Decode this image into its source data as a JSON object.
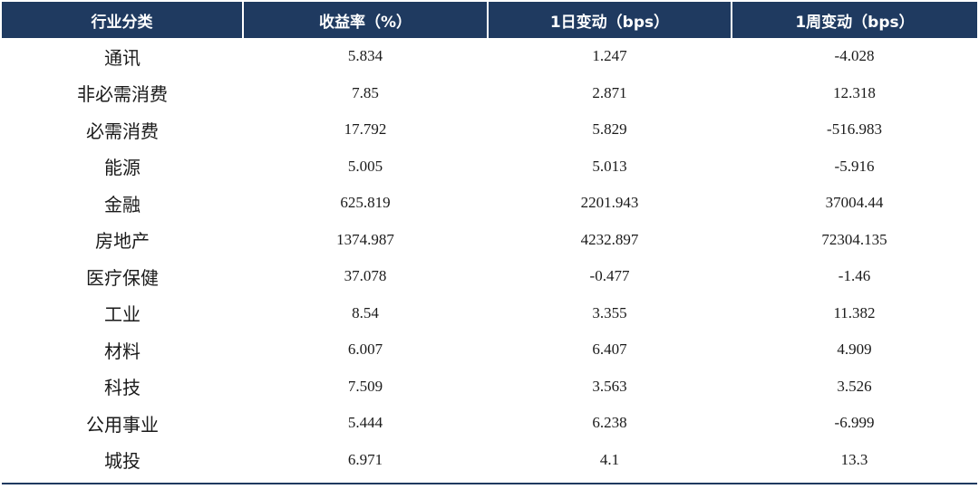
{
  "chart_data": {
    "type": "table",
    "columns": [
      "行业分类",
      "收益率（%）",
      "1日变动（bps）",
      "1周变动（bps）"
    ],
    "rows": [
      [
        "通讯",
        "5.834",
        "1.247",
        "-4.028"
      ],
      [
        "非必需消费",
        "7.85",
        "2.871",
        "12.318"
      ],
      [
        "必需消费",
        "17.792",
        "5.829",
        "-516.983"
      ],
      [
        "能源",
        "5.005",
        "5.013",
        "-5.916"
      ],
      [
        "金融",
        "625.819",
        "2201.943",
        "37004.44"
      ],
      [
        "房地产",
        "1374.987",
        "4232.897",
        "72304.135"
      ],
      [
        "医疗保健",
        "37.078",
        "-0.477",
        "-1.46"
      ],
      [
        "工业",
        "8.54",
        "3.355",
        "11.382"
      ],
      [
        "材料",
        "6.007",
        "6.407",
        "4.909"
      ],
      [
        "科技",
        "7.509",
        "3.563",
        "3.526"
      ],
      [
        "公用事业",
        "5.444",
        "6.238",
        "-6.999"
      ],
      [
        "城投",
        "6.971",
        "4.1",
        "13.3"
      ]
    ]
  },
  "colors": {
    "header_bg": "#1f3a60",
    "header_text": "#ffffff",
    "body_text": "#1a1a1a"
  }
}
